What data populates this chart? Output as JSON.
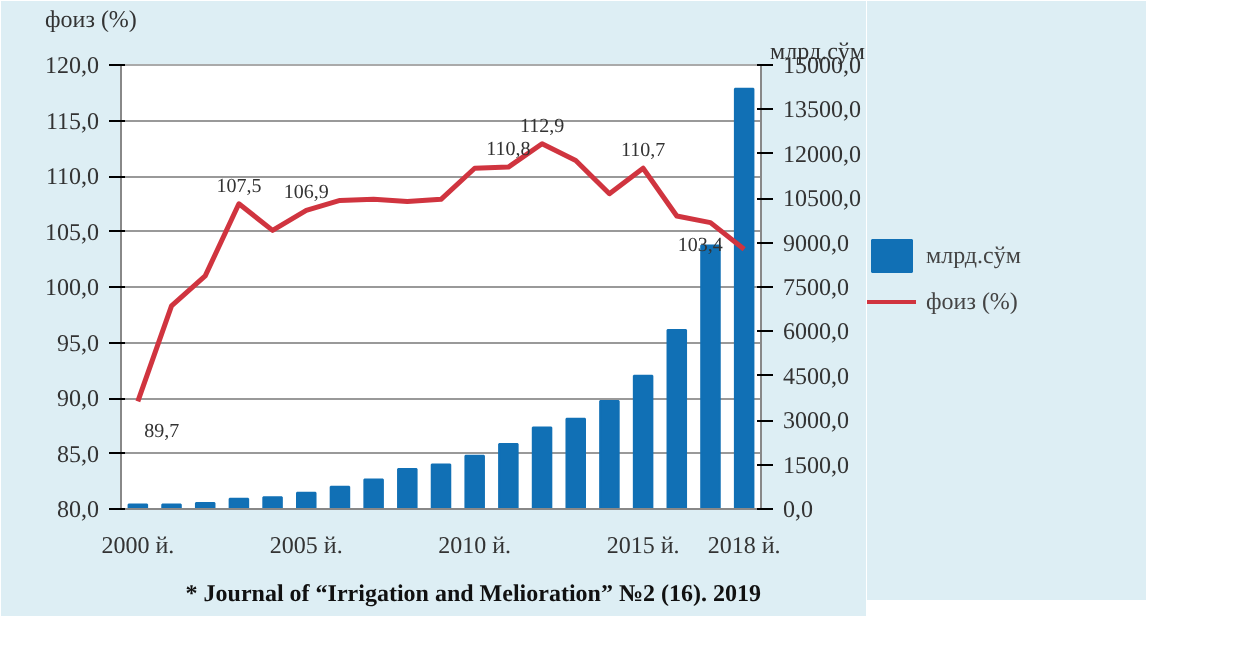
{
  "chart_data": {
    "type": "bar",
    "categories": [
      "2000 й.",
      null,
      null,
      null,
      null,
      "2005 й.",
      null,
      null,
      null,
      null,
      "2010 й.",
      null,
      null,
      null,
      null,
      "2015 й.",
      null,
      null,
      "2018 й."
    ],
    "series": [
      {
        "name": "млрд.сўм",
        "axis": "y2",
        "color": "#1170b5",
        "values": [
          150,
          150,
          200,
          350,
          400,
          550,
          750,
          1000,
          1350,
          1500,
          1800,
          2200,
          2750,
          3050,
          3650,
          4500,
          6050,
          8900,
          14200
        ]
      },
      {
        "name": "фоиз (%)",
        "type": "line",
        "color": "#d0343f",
        "values": [
          89.7,
          98.3,
          101.0,
          107.5,
          105.1,
          106.9,
          107.8,
          107.9,
          107.7,
          107.9,
          110.7,
          110.8,
          112.9,
          111.4,
          108.4,
          110.7,
          106.4,
          105.8,
          103.4
        ],
        "value_labels": [
          "89,7",
          null,
          null,
          "107,5",
          null,
          "106,9",
          null,
          null,
          null,
          null,
          null,
          "110,8",
          "112,9",
          null,
          null,
          "110,7",
          null,
          null,
          "103,4"
        ]
      }
    ],
    "ylabel": "фоиз (%)",
    "y2label": "млрд.сўм",
    "ylim": [
      80,
      120
    ],
    "yticks": [
      {
        "value": 80,
        "label": "80,0"
      },
      {
        "value": 85,
        "label": "85,0"
      },
      {
        "value": 90,
        "label": "90,0"
      },
      {
        "value": 95,
        "label": "95,0"
      },
      {
        "value": 100,
        "label": "100,0"
      },
      {
        "value": 105,
        "label": "105,0"
      },
      {
        "value": 110,
        "label": "110,0"
      },
      {
        "value": 115,
        "label": "115,0"
      },
      {
        "value": 120,
        "label": "120,0"
      }
    ],
    "y2lim": [
      0,
      15000
    ],
    "y2ticks": [
      {
        "value": 0,
        "label": "0,0"
      },
      {
        "value": 1500,
        "label": "1500,0"
      },
      {
        "value": 3000,
        "label": "3000,0"
      },
      {
        "value": 4500,
        "label": "4500,0"
      },
      {
        "value": 6000,
        "label": "6000,0"
      },
      {
        "value": 7500,
        "label": "7500,0"
      },
      {
        "value": 9000,
        "label": "9000,0"
      },
      {
        "value": 10500,
        "label": "10500,0"
      },
      {
        "value": 12000,
        "label": "12000,0"
      },
      {
        "value": 13500,
        "label": "13500,0"
      },
      {
        "value": 15000,
        "label": "15000,0"
      }
    ],
    "grid": "y",
    "legend": "right",
    "annotations": [
      "* Journal of “Irrigation and Melioration” №2 (16). 2019"
    ]
  }
}
